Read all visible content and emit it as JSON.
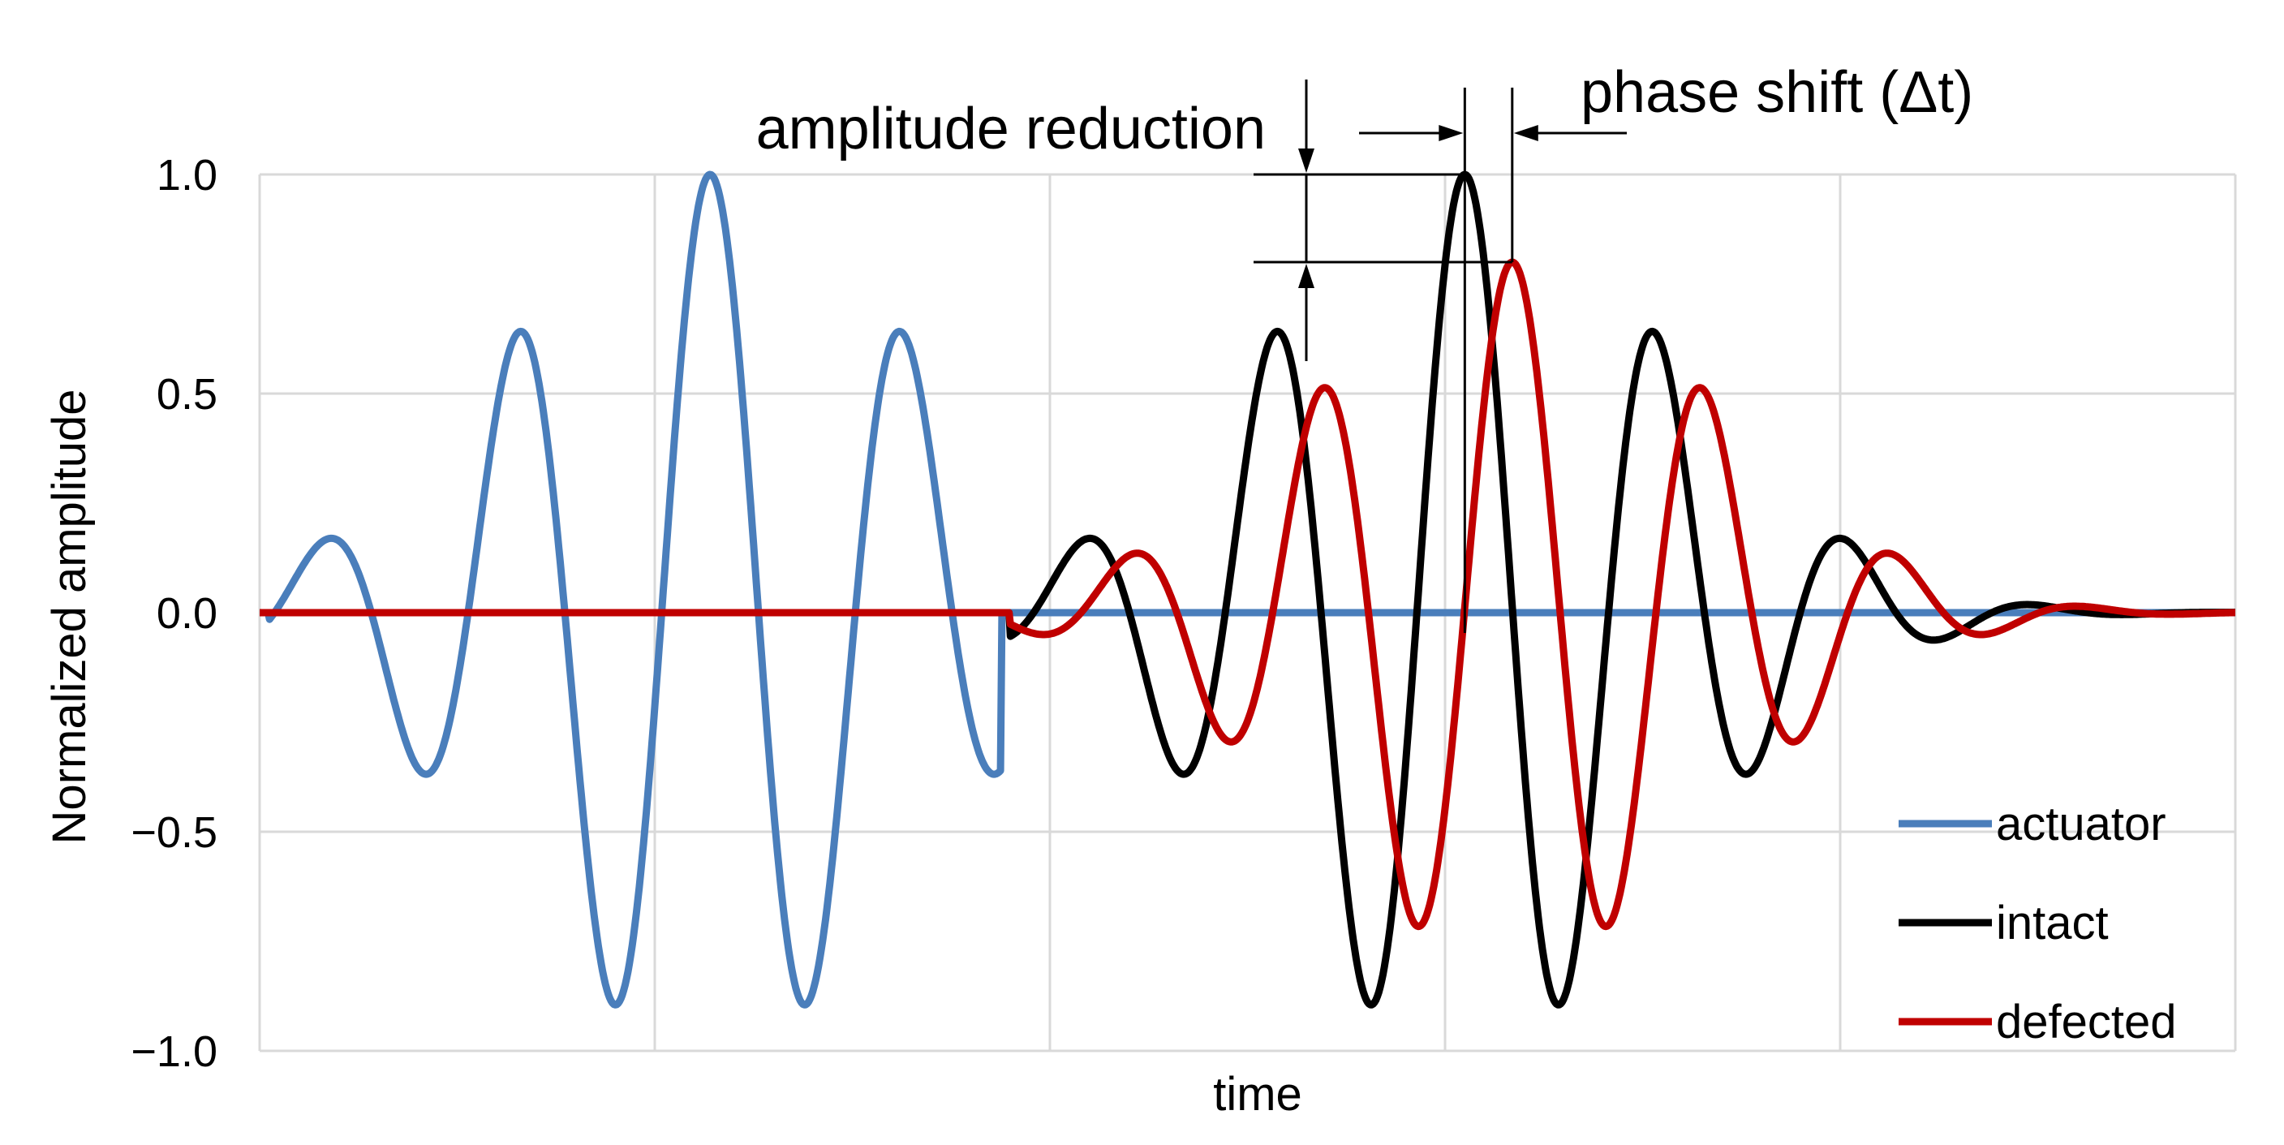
{
  "chart_data": {
    "type": "line",
    "xlabel": "time",
    "ylabel": "Normalized amplitude",
    "ylim": [
      -1.0,
      1.0
    ],
    "yticks": [
      "1.0",
      "0.5",
      "0.0",
      "−0.5",
      "−1.0"
    ],
    "ytick_values": [
      1.0,
      0.5,
      0.0,
      -0.5,
      -1.0
    ],
    "x_range": [
      0,
      100
    ],
    "x_gridlines": [
      0,
      20,
      40,
      60,
      80,
      100
    ],
    "grid": true,
    "legend_position": "bottom-right",
    "colors": {
      "actuator": "#4a7ebb",
      "intact": "#000000",
      "defected": "#c00000",
      "grid": "#d9d9d9",
      "annotation": "#000000"
    },
    "series": [
      {
        "name": "actuator",
        "color": "#4a7ebb",
        "wave": {
          "x0": 0.5,
          "x1": 37.5,
          "amplitude": 1.0,
          "peak_x": 22.8,
          "period": 9.8
        }
      },
      {
        "name": "intact",
        "color": "#000000",
        "wave": {
          "x0": 38.0,
          "x1": 100.0,
          "amplitude": 1.0,
          "peak_x": 61.0,
          "period": 9.7
        }
      },
      {
        "name": "defected",
        "color": "#c00000",
        "wave": {
          "x0": 38.0,
          "x1": 100.0,
          "amplitude": 0.8,
          "peak_x": 63.4,
          "period": 9.7
        }
      }
    ],
    "annotations": {
      "amplitude_reduction": {
        "text": "amplitude reduction",
        "from_y": 1.0,
        "to_y": 0.8
      },
      "phase_shift": {
        "text": "phase shift (Δt)",
        "from_x": 61.0,
        "to_x": 63.4
      }
    }
  }
}
